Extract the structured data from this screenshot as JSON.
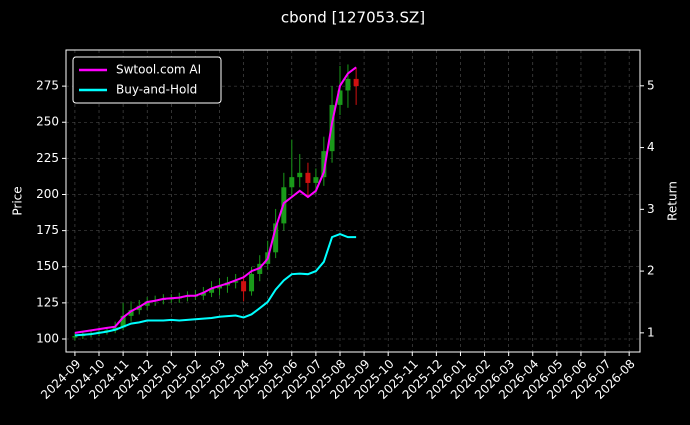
{
  "chart_data": {
    "type": "candlestick",
    "title": "cbond [127053.SZ]",
    "y_label": "Price",
    "y2_label": "Return",
    "xlim": [
      -0.37,
      23.45
    ],
    "ylim": [
      91,
      300
    ],
    "y2lim": [
      0.69,
      5.58
    ],
    "xticks": [
      {
        "value": 0,
        "label": "2024-09"
      },
      {
        "value": 1,
        "label": "2024-10"
      },
      {
        "value": 2,
        "label": "2024-11"
      },
      {
        "value": 3,
        "label": "2024-12"
      },
      {
        "value": 4,
        "label": "2025-01"
      },
      {
        "value": 5,
        "label": "2025-02"
      },
      {
        "value": 6,
        "label": "2025-03"
      },
      {
        "value": 7,
        "label": "2025-04"
      },
      {
        "value": 8,
        "label": "2025-05"
      },
      {
        "value": 9,
        "label": "2025-06"
      },
      {
        "value": 10,
        "label": "2025-07"
      },
      {
        "value": 11,
        "label": "2025-08"
      },
      {
        "value": 12,
        "label": "2025-09"
      },
      {
        "value": 13,
        "label": "2025-10"
      },
      {
        "value": 14,
        "label": "2025-11"
      },
      {
        "value": 15,
        "label": "2025-12"
      },
      {
        "value": 16,
        "label": "2026-01"
      },
      {
        "value": 17,
        "label": "2026-02"
      },
      {
        "value": 18,
        "label": "2026-03"
      },
      {
        "value": 19,
        "label": "2026-04"
      },
      {
        "value": 20,
        "label": "2026-05"
      },
      {
        "value": 21,
        "label": "2026-06"
      },
      {
        "value": 22,
        "label": "2026-07"
      },
      {
        "value": 23,
        "label": "2026-08"
      }
    ],
    "yticks": [
      100,
      125,
      150,
      175,
      200,
      225,
      250,
      275
    ],
    "y2ticks": [
      1,
      2,
      3,
      4,
      5
    ],
    "grid": true,
    "legend": "upper left",
    "up_color": "#1a9a1a",
    "down_color": "#d01010",
    "x": [
      0,
      0.33,
      0.67,
      1,
      1.33,
      1.67,
      2,
      2.33,
      2.67,
      3,
      3.33,
      3.67,
      4,
      4.33,
      4.67,
      5,
      5.33,
      5.67,
      6,
      6.33,
      6.67,
      7,
      7.33,
      7.67,
      8,
      8.33,
      8.67,
      9,
      9.33,
      9.67,
      10,
      10.33,
      10.67,
      11,
      11.33,
      11.67
    ],
    "open": [
      101,
      102,
      103,
      104,
      105,
      106,
      108,
      116,
      120,
      123,
      126,
      127,
      128,
      128,
      129,
      130,
      130,
      132,
      135,
      137,
      139,
      140,
      133,
      145,
      152,
      160,
      180,
      205,
      212,
      215,
      208,
      212,
      230,
      262,
      272,
      280
    ],
    "high": [
      104,
      105,
      106,
      107,
      108,
      112,
      125,
      126,
      127,
      129,
      130,
      131,
      131,
      132,
      133,
      134,
      136,
      140,
      142,
      143,
      145,
      144,
      150,
      158,
      168,
      190,
      215,
      238,
      228,
      222,
      218,
      240,
      275,
      289,
      290,
      288
    ],
    "low": [
      99,
      100,
      101,
      102,
      103,
      104,
      106,
      112,
      117,
      120,
      123,
      124,
      125,
      125,
      126,
      127,
      127,
      129,
      130,
      132,
      135,
      126,
      130,
      140,
      148,
      156,
      175,
      198,
      205,
      198,
      200,
      206,
      222,
      255,
      260,
      262
    ],
    "close": [
      102,
      103,
      104,
      105,
      106,
      108,
      116,
      120,
      123,
      126,
      127,
      128,
      128,
      129,
      130,
      130,
      132,
      135,
      137,
      139,
      140,
      133,
      145,
      152,
      160,
      180,
      205,
      212,
      215,
      208,
      212,
      230,
      262,
      272,
      280,
      275
    ],
    "series": [
      {
        "name": "Swtool.com AI",
        "color": "#ff00ff",
        "axis": "y2",
        "values": [
          1.0,
          1.02,
          1.04,
          1.06,
          1.08,
          1.1,
          1.25,
          1.35,
          1.42,
          1.5,
          1.52,
          1.55,
          1.56,
          1.57,
          1.6,
          1.6,
          1.65,
          1.72,
          1.76,
          1.8,
          1.85,
          1.9,
          2.0,
          2.05,
          2.2,
          2.7,
          3.1,
          3.2,
          3.3,
          3.2,
          3.3,
          3.6,
          4.4,
          5.0,
          5.2,
          5.3
        ]
      },
      {
        "name": "Buy-and-Hold",
        "color": "#00ffff",
        "axis": "y2",
        "values": [
          0.96,
          0.97,
          0.98,
          1.0,
          1.02,
          1.05,
          1.1,
          1.15,
          1.17,
          1.2,
          1.2,
          1.2,
          1.21,
          1.2,
          1.21,
          1.22,
          1.23,
          1.24,
          1.26,
          1.27,
          1.28,
          1.25,
          1.3,
          1.4,
          1.5,
          1.7,
          1.85,
          1.95,
          1.96,
          1.95,
          2.0,
          2.15,
          2.55,
          2.6,
          2.55,
          2.55
        ]
      }
    ]
  }
}
